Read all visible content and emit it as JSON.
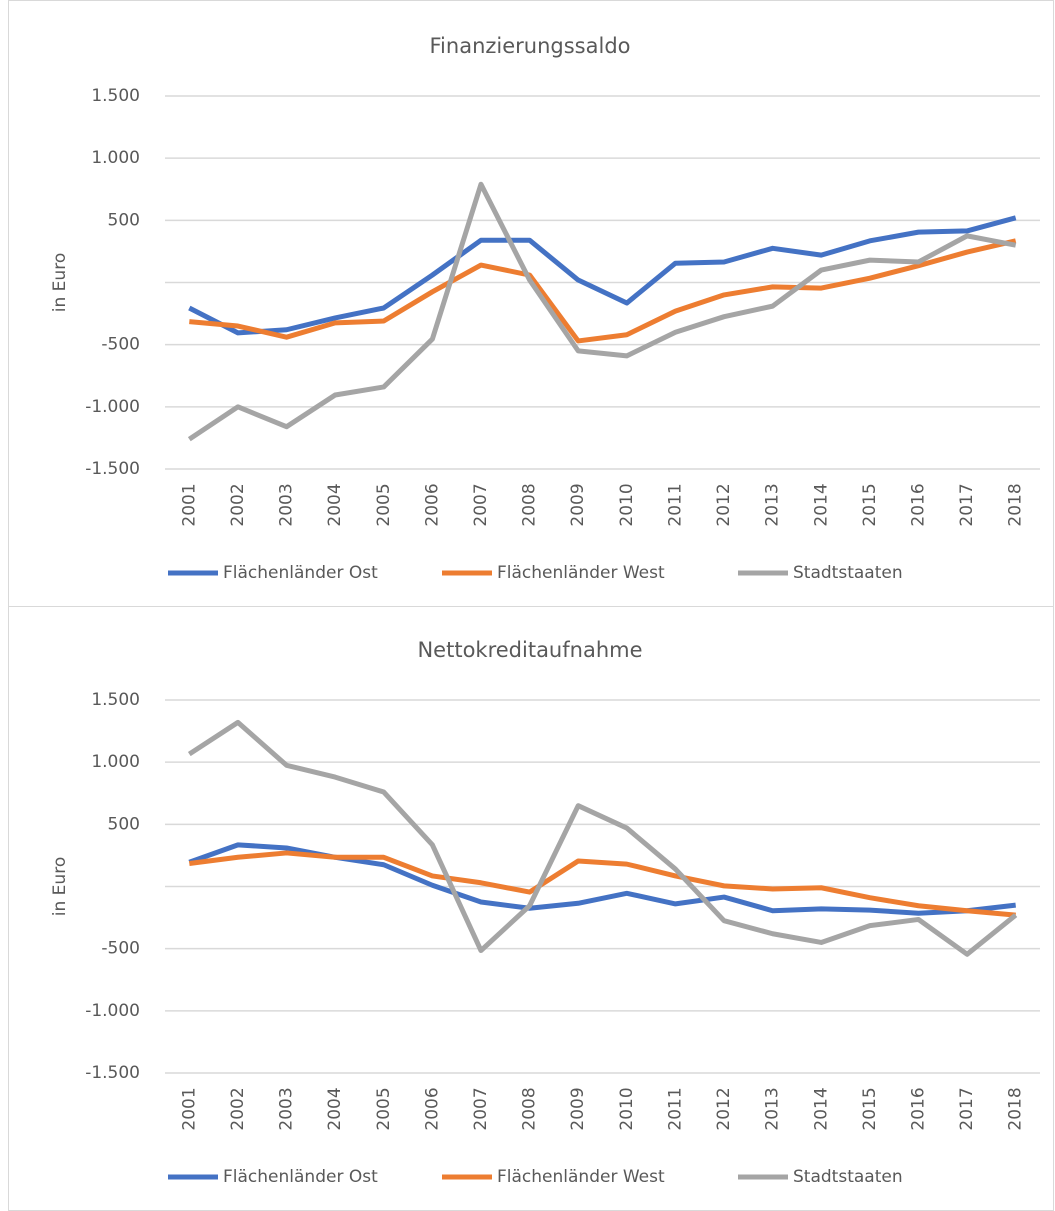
{
  "chart_data": [
    {
      "type": "line",
      "title": "Finanzierungssaldo",
      "y_label": "in Euro",
      "categories": [
        "2001",
        "2002",
        "2003",
        "2004",
        "2005",
        "2006",
        "2007",
        "2008",
        "2009",
        "2010",
        "2011",
        "2012",
        "2013",
        "2014",
        "2015",
        "2016",
        "2017",
        "2018"
      ],
      "series": [
        {
          "name": "Flächenländer Ost",
          "color": "#4472c4",
          "values": [
            -205,
            -405,
            -380,
            -285,
            -205,
            60,
            340,
            340,
            20,
            -165,
            155,
            165,
            275,
            220,
            335,
            405,
            415,
            520
          ]
        },
        {
          "name": "Flächenländer West",
          "color": "#ed7d31",
          "values": [
            -315,
            -350,
            -440,
            -325,
            -310,
            -75,
            140,
            60,
            -470,
            -420,
            -230,
            -100,
            -35,
            -45,
            35,
            135,
            245,
            335
          ]
        },
        {
          "name": "Stadtstaaten",
          "color": "#a5a5a5",
          "values": [
            -1260,
            -1000,
            -1160,
            -905,
            -840,
            -455,
            790,
            20,
            -550,
            -590,
            -400,
            -275,
            -190,
            100,
            180,
            165,
            375,
            300
          ]
        }
      ],
      "ylim": [
        -1500,
        1500
      ],
      "yticks": [
        {
          "value": -1500,
          "label": "-1.500"
        },
        {
          "value": -1000,
          "label": "-1.000"
        },
        {
          "value": -500,
          "label": "-500"
        },
        {
          "value": 0,
          "label": null
        },
        {
          "value": 500,
          "label": "500"
        },
        {
          "value": 1000,
          "label": "1.000"
        },
        {
          "value": 1500,
          "label": "1.500"
        }
      ],
      "grid": true,
      "legend": "bottom"
    },
    {
      "type": "line",
      "title": "Nettokreditaufnahme",
      "y_label": "in Euro",
      "categories": [
        "2001",
        "2002",
        "2003",
        "2004",
        "2005",
        "2006",
        "2007",
        "2008",
        "2009",
        "2010",
        "2011",
        "2012",
        "2013",
        "2014",
        "2015",
        "2016",
        "2017",
        "2018"
      ],
      "series": [
        {
          "name": "Flächenländer Ost",
          "color": "#4472c4",
          "values": [
            195,
            335,
            310,
            235,
            175,
            10,
            -125,
            -175,
            -135,
            -55,
            -140,
            -85,
            -195,
            -180,
            -190,
            -215,
            -195,
            -150
          ]
        },
        {
          "name": "Flächenländer West",
          "color": "#ed7d31",
          "values": [
            185,
            235,
            270,
            235,
            235,
            85,
            30,
            -45,
            205,
            180,
            85,
            5,
            -20,
            -10,
            -90,
            -155,
            -195,
            -230
          ]
        },
        {
          "name": "Stadtstaaten",
          "color": "#a5a5a5",
          "values": [
            1065,
            1320,
            975,
            880,
            760,
            335,
            -515,
            -155,
            650,
            470,
            140,
            -275,
            -380,
            -450,
            -315,
            -265,
            -545,
            -230
          ]
        }
      ],
      "ylim": [
        -1500,
        1500
      ],
      "yticks": [
        {
          "value": -1500,
          "label": "-1.500"
        },
        {
          "value": -1000,
          "label": "-1.000"
        },
        {
          "value": -500,
          "label": "-500"
        },
        {
          "value": 0,
          "label": null
        },
        {
          "value": 500,
          "label": "500"
        },
        {
          "value": 1000,
          "label": "1.000"
        },
        {
          "value": 1500,
          "label": "1.500"
        }
      ],
      "grid": true,
      "legend": "bottom"
    }
  ]
}
